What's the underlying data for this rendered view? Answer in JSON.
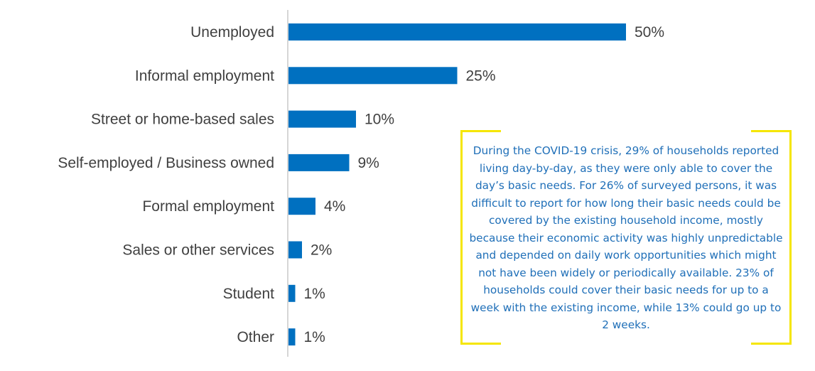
{
  "chart_data": {
    "type": "bar",
    "orientation": "horizontal",
    "categories": [
      "Unemployed",
      "Informal employment",
      "Street or home-based sales",
      "Self-employed / Business owned",
      "Formal employment",
      "Sales or other services",
      "Student",
      "Other"
    ],
    "values": [
      50,
      25,
      10,
      9,
      4,
      2,
      1,
      1
    ],
    "value_labels": [
      "50%",
      "25%",
      "10%",
      "9%",
      "4%",
      "2%",
      "1%",
      "1%"
    ],
    "xlim": [
      0,
      50
    ],
    "bar_color": "#0070c0",
    "title": "",
    "xlabel": "",
    "ylabel": "",
    "grid": false
  },
  "callout": {
    "text": "During the COVID-19 crisis, 29% of households reported living day-by-day, as they were only able to cover the day’s basic needs. For 26% of surveyed persons, it was difficult to report for how long their basic needs could be covered by the existing household income, mostly because their economic activity was highly unpredictable and depended on daily work opportunities which might not have been widely or periodically available. 23% of households could cover their basic needs for up to a week with the existing income, while 13% could go up to 2 weeks.",
    "border_color": "#f5e600",
    "text_color": "#1f6fb8"
  }
}
